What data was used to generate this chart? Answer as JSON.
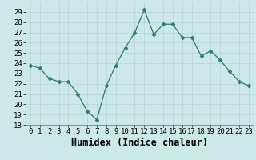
{
  "x": [
    0,
    1,
    2,
    3,
    4,
    5,
    6,
    7,
    8,
    9,
    10,
    11,
    12,
    13,
    14,
    15,
    16,
    17,
    18,
    19,
    20,
    21,
    22,
    23
  ],
  "y": [
    23.8,
    23.5,
    22.5,
    22.2,
    22.2,
    21.0,
    19.3,
    18.5,
    21.8,
    23.8,
    25.5,
    27.0,
    29.2,
    26.8,
    27.8,
    27.8,
    26.5,
    26.5,
    24.7,
    25.2,
    24.3,
    23.2,
    22.2,
    21.8
  ],
  "xlabel": "Humidex (Indice chaleur)",
  "ylim": [
    18,
    30
  ],
  "yticks": [
    18,
    19,
    20,
    21,
    22,
    23,
    24,
    25,
    26,
    27,
    28,
    29
  ],
  "xticks": [
    0,
    1,
    2,
    3,
    4,
    5,
    6,
    7,
    8,
    9,
    10,
    11,
    12,
    13,
    14,
    15,
    16,
    17,
    18,
    19,
    20,
    21,
    22,
    23
  ],
  "line_color": "#2e7d6e",
  "marker": "D",
  "marker_size": 2.5,
  "bg_color": "#cce8e8",
  "grid_color": "#b8d4d4",
  "tick_fontsize": 6.5,
  "xlabel_fontsize": 8.5
}
